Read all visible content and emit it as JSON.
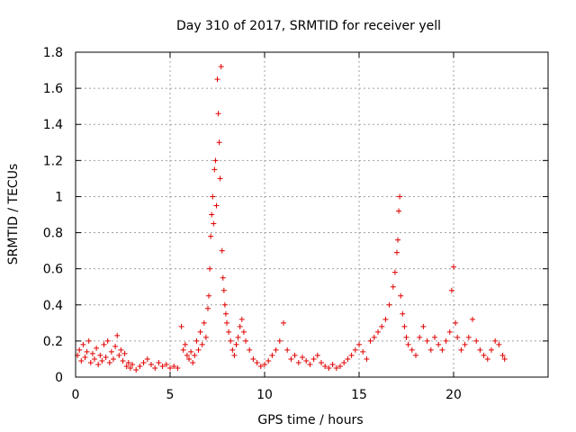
{
  "chart_data": {
    "type": "scatter",
    "title": "Day 310 of 2017, SRMTID for receiver yell",
    "xlabel": "GPS time / hours",
    "ylabel": "SRMTID / TECUs",
    "xlim": [
      0,
      25
    ],
    "ylim": [
      0,
      1.8
    ],
    "xticks": [
      0,
      5,
      10,
      15,
      20
    ],
    "xtick_labels": [
      "0",
      "5",
      "10",
      "15",
      "20"
    ],
    "yticks": [
      0,
      0.2,
      0.4,
      0.6,
      0.8,
      1,
      1.2,
      1.4,
      1.6,
      1.8
    ],
    "ytick_labels": [
      "0",
      "0.2",
      "0.4",
      "0.6",
      "0.8",
      "1",
      "1.2",
      "1.4",
      "1.6",
      "1.8"
    ],
    "grid": true,
    "marker": "plus",
    "color": "#e00000",
    "series": [
      {
        "name": "SRMTID",
        "points": [
          [
            0.1,
            0.12
          ],
          [
            0.2,
            0.15
          ],
          [
            0.3,
            0.09
          ],
          [
            0.4,
            0.18
          ],
          [
            0.5,
            0.11
          ],
          [
            0.6,
            0.14
          ],
          [
            0.7,
            0.2
          ],
          [
            0.8,
            0.08
          ],
          [
            0.9,
            0.13
          ],
          [
            1.0,
            0.1
          ],
          [
            1.1,
            0.16
          ],
          [
            1.2,
            0.07
          ],
          [
            1.3,
            0.12
          ],
          [
            1.4,
            0.09
          ],
          [
            1.5,
            0.18
          ],
          [
            1.6,
            0.11
          ],
          [
            1.7,
            0.2
          ],
          [
            1.8,
            0.08
          ],
          [
            1.9,
            0.14
          ],
          [
            2.0,
            0.1
          ],
          [
            2.1,
            0.17
          ],
          [
            2.2,
            0.23
          ],
          [
            2.3,
            0.12
          ],
          [
            2.4,
            0.15
          ],
          [
            2.5,
            0.09
          ],
          [
            2.6,
            0.13
          ],
          [
            2.7,
            0.06
          ],
          [
            2.8,
            0.08
          ],
          [
            2.9,
            0.05
          ],
          [
            3.0,
            0.07
          ],
          [
            3.2,
            0.04
          ],
          [
            3.4,
            0.06
          ],
          [
            3.6,
            0.08
          ],
          [
            3.8,
            0.1
          ],
          [
            4.0,
            0.07
          ],
          [
            4.2,
            0.05
          ],
          [
            4.4,
            0.08
          ],
          [
            4.6,
            0.06
          ],
          [
            4.8,
            0.07
          ],
          [
            5.0,
            0.05
          ],
          [
            5.2,
            0.06
          ],
          [
            5.4,
            0.05
          ],
          [
            5.6,
            0.28
          ],
          [
            5.7,
            0.15
          ],
          [
            5.8,
            0.18
          ],
          [
            5.9,
            0.12
          ],
          [
            6.0,
            0.1
          ],
          [
            6.1,
            0.14
          ],
          [
            6.2,
            0.08
          ],
          [
            6.3,
            0.12
          ],
          [
            6.4,
            0.2
          ],
          [
            6.5,
            0.15
          ],
          [
            6.6,
            0.25
          ],
          [
            6.7,
            0.18
          ],
          [
            6.8,
            0.3
          ],
          [
            6.9,
            0.22
          ],
          [
            7.0,
            0.38
          ],
          [
            7.05,
            0.45
          ],
          [
            7.1,
            0.6
          ],
          [
            7.15,
            0.78
          ],
          [
            7.2,
            0.9
          ],
          [
            7.25,
            1.0
          ],
          [
            7.3,
            0.85
          ],
          [
            7.35,
            1.15
          ],
          [
            7.4,
            1.2
          ],
          [
            7.45,
            0.95
          ],
          [
            7.5,
            1.65
          ],
          [
            7.55,
            1.46
          ],
          [
            7.6,
            1.3
          ],
          [
            7.65,
            1.1
          ],
          [
            7.7,
            1.72
          ],
          [
            7.75,
            0.7
          ],
          [
            7.8,
            0.55
          ],
          [
            7.85,
            0.48
          ],
          [
            7.9,
            0.4
          ],
          [
            7.95,
            0.35
          ],
          [
            8.0,
            0.3
          ],
          [
            8.1,
            0.25
          ],
          [
            8.2,
            0.2
          ],
          [
            8.3,
            0.15
          ],
          [
            8.4,
            0.12
          ],
          [
            8.5,
            0.18
          ],
          [
            8.6,
            0.22
          ],
          [
            8.7,
            0.28
          ],
          [
            8.8,
            0.32
          ],
          [
            8.9,
            0.25
          ],
          [
            9.0,
            0.2
          ],
          [
            9.2,
            0.15
          ],
          [
            9.4,
            0.1
          ],
          [
            9.6,
            0.08
          ],
          [
            9.8,
            0.06
          ],
          [
            10.0,
            0.07
          ],
          [
            10.2,
            0.09
          ],
          [
            10.4,
            0.12
          ],
          [
            10.6,
            0.15
          ],
          [
            10.8,
            0.2
          ],
          [
            11.0,
            0.3
          ],
          [
            11.2,
            0.15
          ],
          [
            11.4,
            0.1
          ],
          [
            11.6,
            0.12
          ],
          [
            11.8,
            0.08
          ],
          [
            12.0,
            0.11
          ],
          [
            12.2,
            0.09
          ],
          [
            12.4,
            0.07
          ],
          [
            12.6,
            0.1
          ],
          [
            12.8,
            0.12
          ],
          [
            13.0,
            0.08
          ],
          [
            13.2,
            0.06
          ],
          [
            13.4,
            0.05
          ],
          [
            13.6,
            0.07
          ],
          [
            13.8,
            0.05
          ],
          [
            14.0,
            0.06
          ],
          [
            14.2,
            0.08
          ],
          [
            14.4,
            0.1
          ],
          [
            14.6,
            0.12
          ],
          [
            14.8,
            0.15
          ],
          [
            15.0,
            0.18
          ],
          [
            15.2,
            0.14
          ],
          [
            15.4,
            0.1
          ],
          [
            15.6,
            0.2
          ],
          [
            15.8,
            0.22
          ],
          [
            16.0,
            0.25
          ],
          [
            16.2,
            0.28
          ],
          [
            16.4,
            0.32
          ],
          [
            16.6,
            0.4
          ],
          [
            16.8,
            0.5
          ],
          [
            16.9,
            0.58
          ],
          [
            17.0,
            0.69
          ],
          [
            17.05,
            0.76
          ],
          [
            17.1,
            0.92
          ],
          [
            17.15,
            1.0
          ],
          [
            17.2,
            0.45
          ],
          [
            17.3,
            0.35
          ],
          [
            17.4,
            0.28
          ],
          [
            17.5,
            0.22
          ],
          [
            17.6,
            0.18
          ],
          [
            17.8,
            0.15
          ],
          [
            18.0,
            0.12
          ],
          [
            18.2,
            0.22
          ],
          [
            18.4,
            0.28
          ],
          [
            18.6,
            0.2
          ],
          [
            18.8,
            0.15
          ],
          [
            19.0,
            0.22
          ],
          [
            19.2,
            0.18
          ],
          [
            19.4,
            0.15
          ],
          [
            19.6,
            0.2
          ],
          [
            19.8,
            0.25
          ],
          [
            19.9,
            0.48
          ],
          [
            20.0,
            0.61
          ],
          [
            20.1,
            0.3
          ],
          [
            20.2,
            0.22
          ],
          [
            20.4,
            0.15
          ],
          [
            20.6,
            0.18
          ],
          [
            20.8,
            0.22
          ],
          [
            21.0,
            0.32
          ],
          [
            21.2,
            0.2
          ],
          [
            21.4,
            0.15
          ],
          [
            21.6,
            0.12
          ],
          [
            21.8,
            0.1
          ],
          [
            22.0,
            0.15
          ],
          [
            22.2,
            0.2
          ],
          [
            22.4,
            0.18
          ],
          [
            22.6,
            0.12
          ],
          [
            22.7,
            0.1
          ]
        ]
      }
    ]
  }
}
